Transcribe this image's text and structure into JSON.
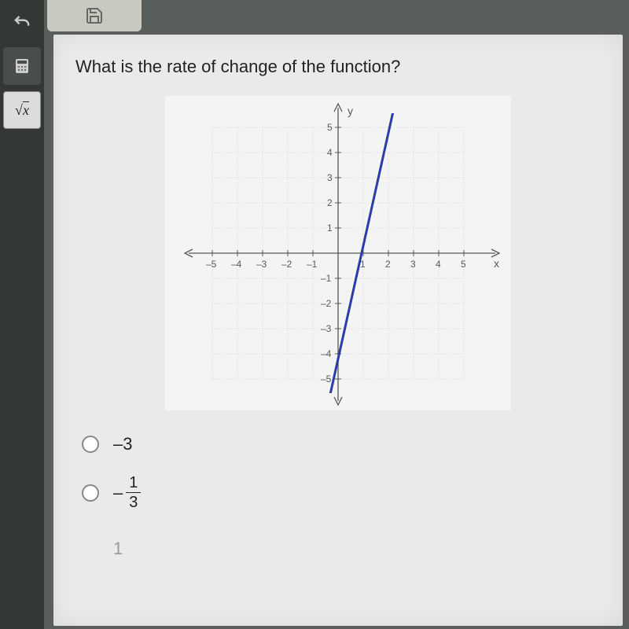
{
  "question": "What is the rate of change of the function?",
  "toolbar": {
    "save_icon": "save",
    "undo_icon": "undo",
    "calc_icon": "calculator",
    "sqrt_label": "x"
  },
  "graph": {
    "type": "line",
    "x_label": "x",
    "y_label": "y",
    "xlim": [
      -6,
      6
    ],
    "ylim": [
      -6,
      6
    ],
    "tick_step": 1,
    "x_tick_labels": [
      -5,
      -4,
      -3,
      -2,
      -1,
      1,
      2,
      3,
      4,
      5
    ],
    "y_tick_labels": [
      5,
      4,
      3,
      2,
      1,
      -1,
      -2,
      -3,
      -4,
      -5
    ],
    "grid_color": "#d6d6d6",
    "axis_color": "#585858",
    "label_color": "#585858",
    "background_color": "#f4f4f4",
    "line_color": "#2b3ca6",
    "line_width": 3,
    "line_points": [
      [
        -0.4,
        -6
      ],
      [
        2.27,
        6
      ]
    ],
    "label_fontsize": 12,
    "title_fontsize": 14
  },
  "answers": {
    "options": [
      {
        "type": "plain",
        "value": "-3",
        "display": "–3"
      },
      {
        "type": "fraction",
        "sign": "–",
        "num": "1",
        "den": "3"
      },
      {
        "type": "plain",
        "value": "1",
        "display": "1"
      }
    ]
  },
  "colors": {
    "panel_bg": "#eaeaea",
    "body_bg": "#5a5e5a",
    "toolbar_bg": "#343834",
    "text": "#222222"
  }
}
